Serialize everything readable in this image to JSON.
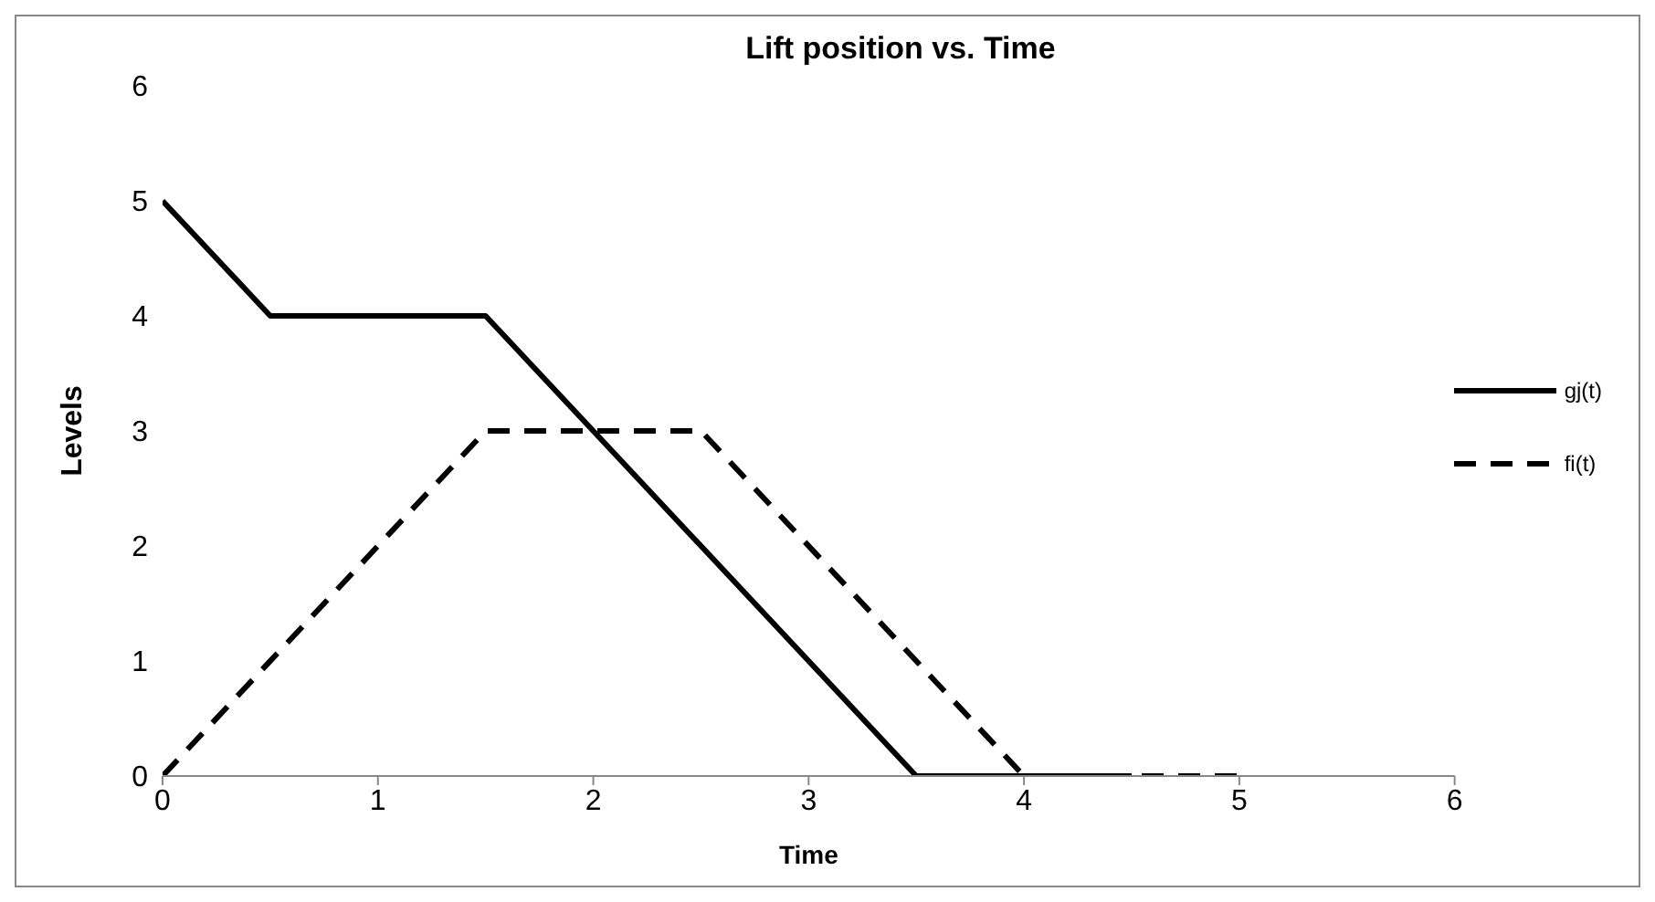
{
  "chart_data": {
    "type": "line",
    "title": "Lift position vs. Time",
    "xlabel": "Time",
    "ylabel": "Levels",
    "xlim": [
      0,
      6
    ],
    "xticks": [
      0,
      1,
      2,
      3,
      4,
      5,
      6
    ],
    "ylim": [
      0,
      6
    ],
    "yticks": [
      0,
      1,
      2,
      3,
      4,
      5,
      6
    ],
    "grid": false,
    "legend": "right",
    "marker": "none",
    "series": [
      {
        "name": "gj(t)",
        "color": "#000000",
        "line_style": "solid",
        "x": [
          0,
          0.5,
          1.5,
          3.5,
          4.5
        ],
        "values": [
          5,
          4,
          4,
          0,
          0
        ]
      },
      {
        "name": "fi(t)",
        "color": "#000000",
        "line_style": "dashed",
        "x": [
          0,
          1.5,
          2.5,
          4,
          5
        ],
        "values": [
          0,
          3,
          3,
          0,
          0
        ]
      }
    ]
  }
}
